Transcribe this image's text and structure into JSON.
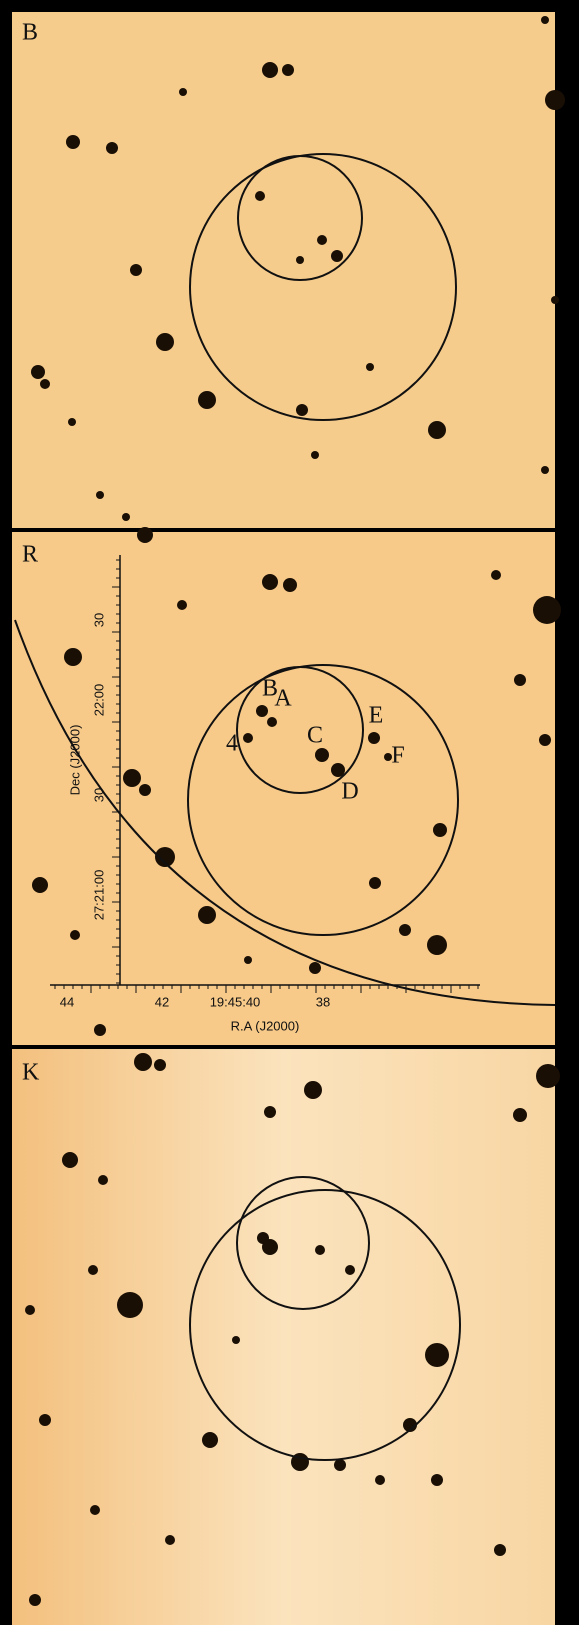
{
  "panels": [
    {
      "label": "B"
    },
    {
      "label": "R",
      "sources": [
        "B",
        "A",
        "C",
        "E",
        "F",
        "4",
        "D"
      ],
      "axes": {
        "y_label": "Dec (J2000)",
        "y_ticks": [
          "30",
          "22:00",
          "30",
          "27:21:00"
        ],
        "x_label": "R.A (J2000)",
        "x_ticks": [
          "44",
          "42",
          "19:45:40",
          "38"
        ]
      }
    },
    {
      "label": "K"
    }
  ]
}
